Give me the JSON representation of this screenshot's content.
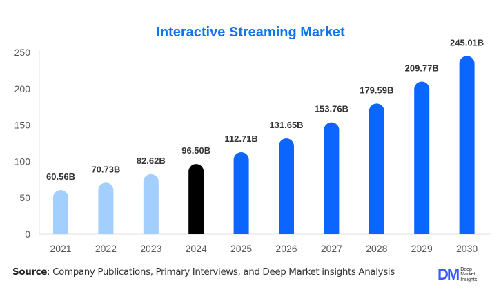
{
  "chart_data": {
    "type": "bar",
    "title": "Interactive Streaming Market",
    "categories": [
      "2021",
      "2022",
      "2023",
      "2024",
      "2025",
      "2026",
      "2027",
      "2028",
      "2029",
      "2030"
    ],
    "values": [
      60.56,
      70.73,
      82.62,
      96.5,
      112.71,
      131.65,
      153.76,
      179.59,
      209.77,
      245.01
    ],
    "data_labels": [
      "60.56B",
      "70.73B",
      "82.62B",
      "96.50B",
      "112.71B",
      "131.65B",
      "153.76B",
      "179.59B",
      "209.77B",
      "245.01B"
    ],
    "bar_colors": [
      "#a3cfff",
      "#a3cfff",
      "#a3cfff",
      "#000000",
      "#0a66ff",
      "#0a66ff",
      "#0a66ff",
      "#0a66ff",
      "#0a66ff",
      "#0a66ff"
    ],
    "ylim": [
      0,
      250
    ],
    "yticks": [
      0,
      50,
      100,
      150,
      200,
      250
    ],
    "xlabel": "",
    "ylabel": "",
    "grid": false,
    "title_color": "#1173f0"
  },
  "footer": {
    "source_label": "Source",
    "source_text": ": Company Publications, Primary Interviews, and Deep Market insights Analysis",
    "logo_mark": "DM",
    "logo_text": [
      "Deep",
      "Market",
      "Insights"
    ]
  }
}
